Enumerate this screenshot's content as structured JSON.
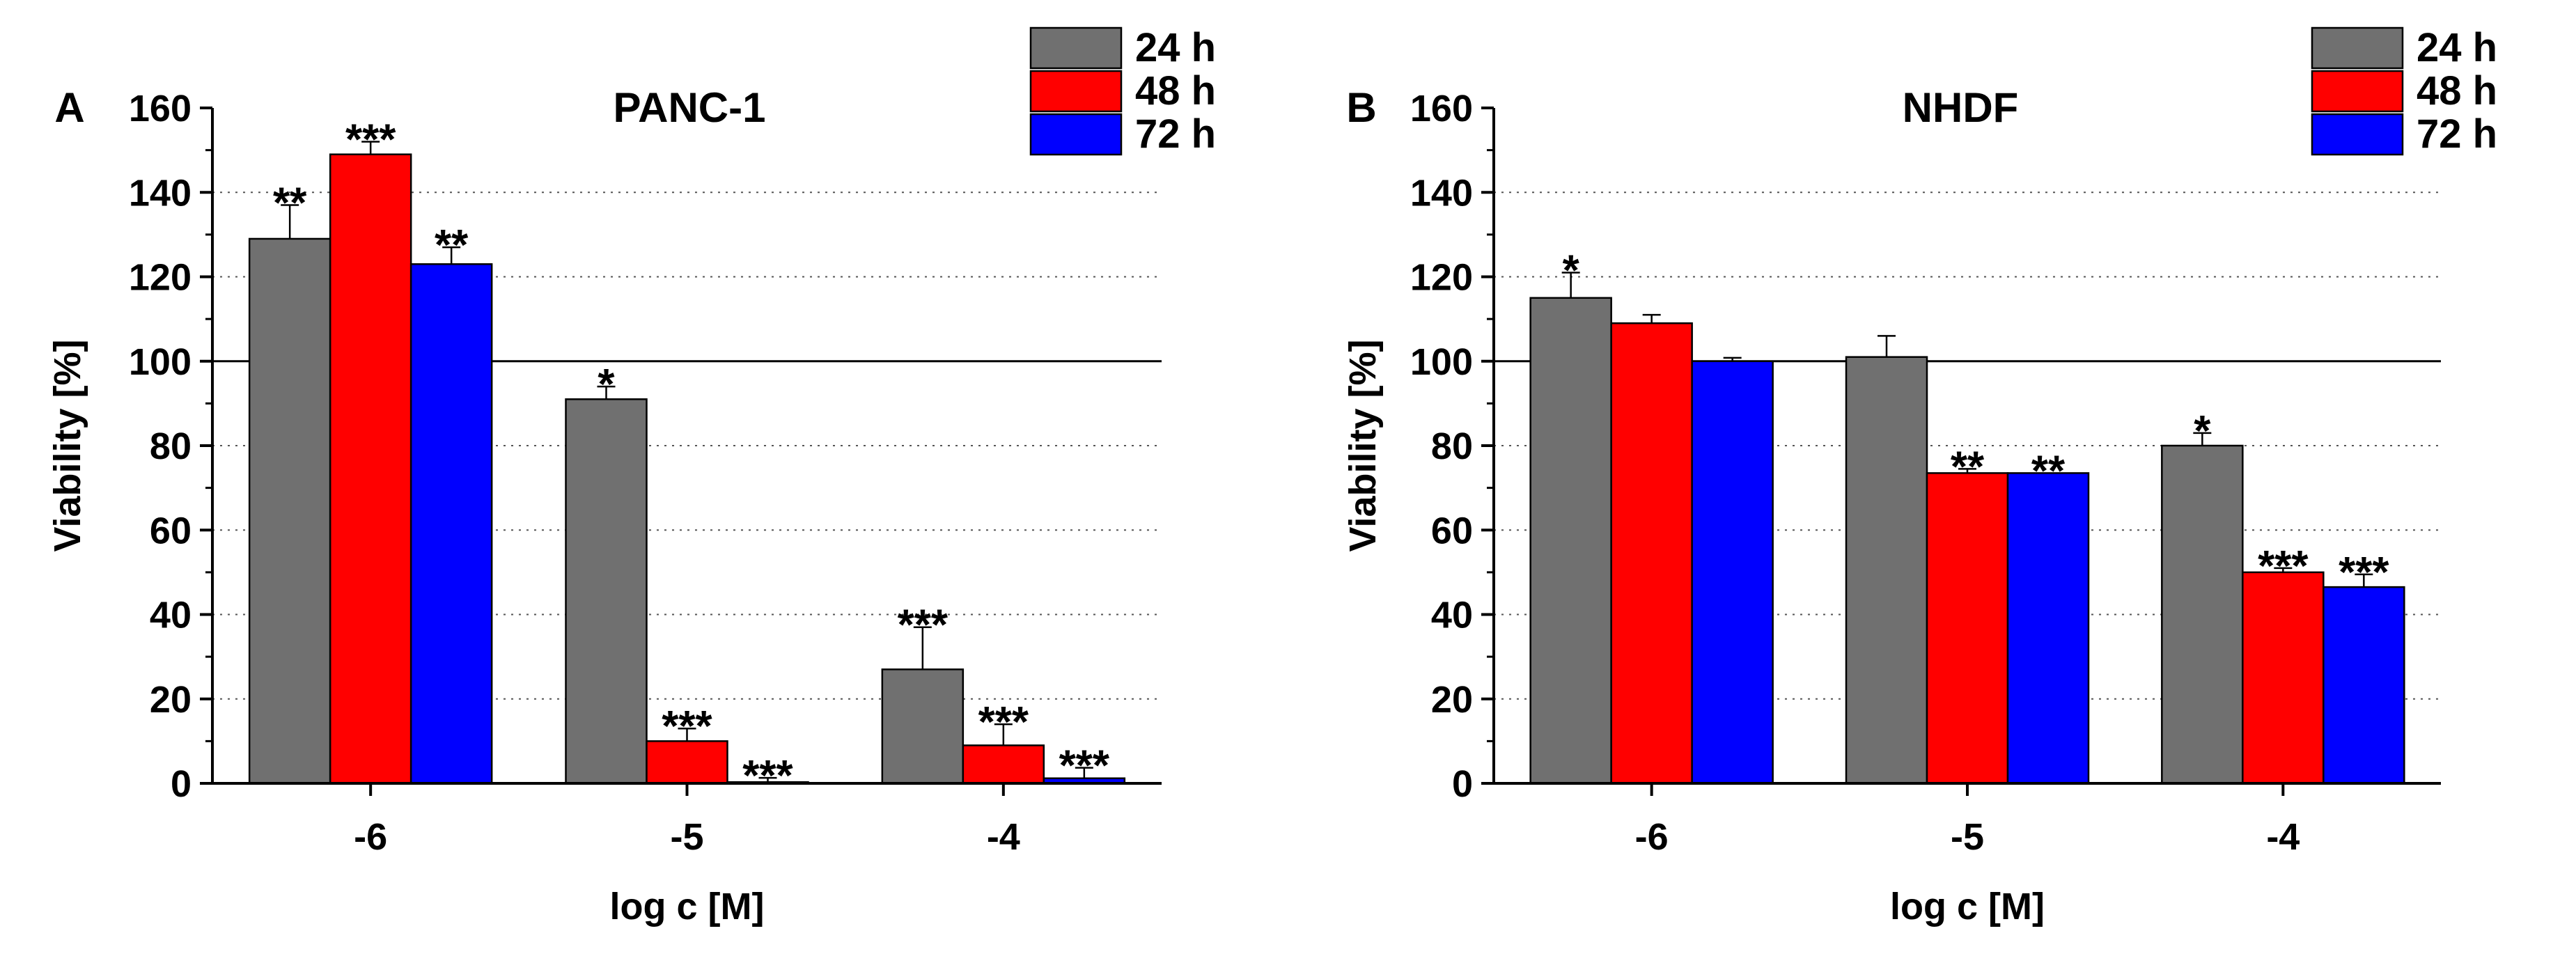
{
  "chart_data": [
    {
      "type": "bar",
      "panel_label": "A",
      "title": "PANC-1",
      "xlabel": "log c [M]",
      "ylabel": "Viability [%]",
      "ylim": [
        0,
        160
      ],
      "yticks": [
        "0",
        "20",
        "40",
        "60",
        "80",
        "100",
        "120",
        "140",
        "160"
      ],
      "categories": [
        "-6",
        "-5",
        "-4"
      ],
      "reference_line": 100,
      "grid": "horizontal-dotted",
      "legend_position": "top-right",
      "series": [
        {
          "name": "24 h",
          "color": "#707070",
          "values": [
            129,
            91,
            27
          ],
          "errors": [
            8,
            3,
            10
          ],
          "annotations": [
            "**",
            "*",
            "***"
          ]
        },
        {
          "name": "48 h",
          "color": "#ff0000",
          "values": [
            149,
            10,
            9
          ],
          "errors": [
            3,
            3,
            5
          ],
          "annotations": [
            "***",
            "***",
            "***"
          ]
        },
        {
          "name": "72 h",
          "color": "#0000ff",
          "values": [
            123,
            0.3,
            1.2
          ],
          "errors": [
            4,
            1,
            2.5
          ],
          "annotations": [
            "**",
            "***",
            "***"
          ]
        }
      ]
    },
    {
      "type": "bar",
      "panel_label": "B",
      "title": "NHDF",
      "xlabel": "log c [M]",
      "ylabel": "Viability [%]",
      "ylim": [
        0,
        160
      ],
      "yticks": [
        "0",
        "20",
        "40",
        "60",
        "80",
        "100",
        "120",
        "140",
        "160"
      ],
      "categories": [
        "-6",
        "-5",
        "-4"
      ],
      "reference_line": 100,
      "grid": "horizontal-dotted",
      "legend_position": "top-right",
      "series": [
        {
          "name": "24 h",
          "color": "#707070",
          "values": [
            115,
            101,
            80
          ],
          "errors": [
            6,
            5,
            3
          ],
          "annotations": [
            "*",
            "",
            "*"
          ]
        },
        {
          "name": "48 h",
          "color": "#ff0000",
          "values": [
            109,
            73.5,
            50
          ],
          "errors": [
            2,
            1,
            1
          ],
          "annotations": [
            "",
            "**",
            "***"
          ]
        },
        {
          "name": "72 h",
          "color": "#0000ff",
          "values": [
            100,
            73.5,
            46.5
          ],
          "errors": [
            0.8,
            0,
            3
          ],
          "annotations": [
            "",
            "**",
            "***"
          ]
        }
      ]
    }
  ]
}
